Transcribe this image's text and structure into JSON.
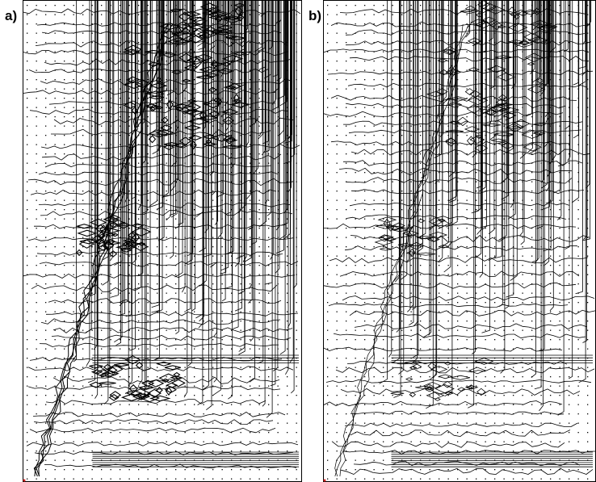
{
  "panels": [
    {
      "id": "a",
      "label": "a)"
    },
    {
      "id": "b",
      "label": "b)"
    }
  ],
  "colors": {
    "background": "#ffffff",
    "contour": "#000000",
    "grid_dot": "#000000",
    "marker": "#d02020"
  }
}
